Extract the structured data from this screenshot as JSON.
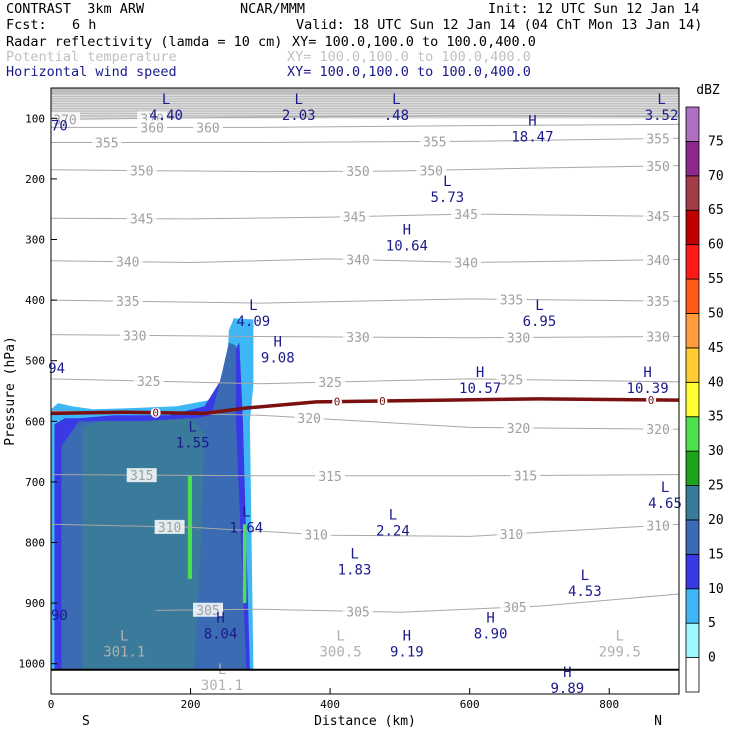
{
  "header": {
    "model": "CONTRAST  3km ARW",
    "org": "NCAR/MMM",
    "init": "Init: 12 UTC Sun 12 Jan 14",
    "fcst_label": "Fcst:",
    "fcst_value": "6 h",
    "valid": "Valid: 18 UTC Sun 12 Jan 14 (04 ChT Mon 13 Jan 14)",
    "field1": "Radar reflectivity (lamda = 10 cm)",
    "field1_xy": "XY= 100.0,100.0 to 100.0,400.0",
    "field2": "Potential temperature",
    "field2_xy": "XY= 100.0,100.0 to 100.0,400.0",
    "field3": "Horizontal wind speed",
    "field3_xy": "XY= 100.0,100.0 to 100.0,400.0"
  },
  "chart_data": {
    "type": "cross-section",
    "xlabel": "Distance (km)",
    "ylabel": "Pressure (hPa)",
    "xlim": [
      0,
      900
    ],
    "ylim": [
      1050,
      50
    ],
    "x_ticks": [
      0,
      200,
      400,
      600,
      800
    ],
    "y_ticks": [
      100,
      200,
      300,
      400,
      500,
      600,
      700,
      800,
      900,
      1000
    ],
    "end_labels": [
      "S",
      "N"
    ],
    "colorbar": {
      "unit": "dBZ",
      "levels": [
        0,
        5,
        10,
        15,
        20,
        25,
        30,
        35,
        40,
        45,
        50,
        55,
        60,
        65,
        70,
        75
      ],
      "colors": [
        "#ffffff",
        "#9ef7ff",
        "#3fb6f5",
        "#3939e6",
        "#3b6cb3",
        "#3a7a9a",
        "#1fa31f",
        "#4fe04f",
        "#ffff33",
        "#ffcc33",
        "#ff9d3f",
        "#ff5a1a",
        "#ff1a1a",
        "#c00000",
        "#a33d4a",
        "#8c2a8c",
        "#b070c0"
      ]
    },
    "theta_contours": [
      {
        "label": "370",
        "points": [
          [
            0,
            102
          ],
          [
            300,
            98
          ],
          [
            600,
            96
          ],
          [
            900,
            97
          ]
        ],
        "label_x": [
          20,
          145
        ]
      },
      {
        "label": "360",
        "points": [
          [
            0,
            115
          ],
          [
            300,
            115
          ],
          [
            600,
            112
          ],
          [
            900,
            110
          ]
        ],
        "label_x": [
          145,
          225
        ]
      },
      {
        "label": "355",
        "points": [
          [
            0,
            140
          ],
          [
            300,
            140
          ],
          [
            600,
            138
          ],
          [
            900,
            133
          ]
        ],
        "label_x": [
          80,
          550,
          870
        ]
      },
      {
        "label": "350",
        "points": [
          [
            0,
            185
          ],
          [
            300,
            188
          ],
          [
            500,
            187
          ],
          [
            700,
            182
          ],
          [
            900,
            178
          ]
        ],
        "label_x": [
          130,
          440,
          545,
          870
        ]
      },
      {
        "label": "345",
        "points": [
          [
            0,
            265
          ],
          [
            200,
            266
          ],
          [
            400,
            263
          ],
          [
            600,
            258
          ],
          [
            900,
            262
          ]
        ],
        "label_x": [
          130,
          435,
          595,
          870
        ]
      },
      {
        "label": "340",
        "points": [
          [
            0,
            335
          ],
          [
            200,
            338
          ],
          [
            400,
            332
          ],
          [
            600,
            338
          ],
          [
            900,
            333
          ]
        ],
        "label_x": [
          110,
          440,
          595,
          870
        ]
      },
      {
        "label": "335",
        "points": [
          [
            0,
            400
          ],
          [
            300,
            405
          ],
          [
            600,
            398
          ],
          [
            900,
            402
          ]
        ],
        "label_x": [
          110,
          660,
          870
        ]
      },
      {
        "label": "330",
        "points": [
          [
            0,
            457
          ],
          [
            300,
            460
          ],
          [
            600,
            462
          ],
          [
            900,
            460
          ]
        ],
        "label_x": [
          120,
          440,
          670,
          870
        ]
      },
      {
        "label": "325",
        "points": [
          [
            0,
            530
          ],
          [
            300,
            538
          ],
          [
            600,
            530
          ],
          [
            900,
            535
          ]
        ],
        "label_x": [
          140,
          400,
          660
        ]
      },
      {
        "label": "320",
        "points": [
          [
            0,
            583
          ],
          [
            300,
            590
          ],
          [
            600,
            610
          ],
          [
            900,
            613
          ]
        ],
        "label_x": [
          370,
          670,
          870
        ]
      },
      {
        "label": "315",
        "points": [
          [
            0,
            688
          ],
          [
            300,
            690
          ],
          [
            600,
            690
          ],
          [
            900,
            688
          ]
        ],
        "label_x": [
          130,
          400,
          680
        ]
      },
      {
        "label": "310",
        "points": [
          [
            0,
            770
          ],
          [
            200,
            775
          ],
          [
            400,
            788
          ],
          [
            600,
            790
          ],
          [
            900,
            770
          ]
        ],
        "label_x": [
          170,
          380,
          660,
          870
        ]
      },
      {
        "label": "305",
        "points": [
          [
            150,
            912
          ],
          [
            300,
            910
          ],
          [
            500,
            915
          ],
          [
            700,
            905
          ],
          [
            900,
            885
          ]
        ],
        "label_x": [
          225,
          440,
          665
        ]
      }
    ],
    "freezing_level": {
      "label": "0",
      "points": [
        [
          0,
          587
        ],
        [
          100,
          585
        ],
        [
          220,
          587
        ],
        [
          280,
          578
        ],
        [
          380,
          568
        ],
        [
          500,
          566
        ],
        [
          700,
          563
        ],
        [
          900,
          565
        ]
      ],
      "label_x": [
        150,
        410,
        475,
        860
      ]
    },
    "wind_extrema": [
      {
        "kind": "L",
        "value": "4.40",
        "x": 165,
        "p": 80
      },
      {
        "kind": "L",
        "value": "2.03",
        "x": 355,
        "p": 80
      },
      {
        "kind": "L",
        "value": ".48",
        "x": 495,
        "p": 80
      },
      {
        "kind": "L",
        "value": "3.52",
        "x": 875,
        "p": 80
      },
      {
        "kind": "",
        "value": "70",
        "x": 12,
        "p": 97
      },
      {
        "kind": "H",
        "value": "18.47",
        "x": 690,
        "p": 115
      },
      {
        "kind": "L",
        "value": "5.73",
        "x": 568,
        "p": 215
      },
      {
        "kind": "H",
        "value": "10.64",
        "x": 510,
        "p": 295
      },
      {
        "kind": "L",
        "value": "4.09",
        "x": 290,
        "p": 420
      },
      {
        "kind": "L",
        "value": "6.95",
        "x": 700,
        "p": 420
      },
      {
        "kind": "H",
        "value": "9.08",
        "x": 325,
        "p": 480
      },
      {
        "kind": "",
        "value": "94",
        "x": 8,
        "p": 497
      },
      {
        "kind": "H",
        "value": "10.57",
        "x": 615,
        "p": 530
      },
      {
        "kind": "H",
        "value": "10.39",
        "x": 855,
        "p": 530
      },
      {
        "kind": "L",
        "value": "1.55",
        "x": 203,
        "p": 620
      },
      {
        "kind": "L",
        "value": "1.64",
        "x": 280,
        "p": 760
      },
      {
        "kind": "L",
        "value": "2.24",
        "x": 490,
        "p": 765
      },
      {
        "kind": "L",
        "value": "4.65",
        "x": 880,
        "p": 720
      },
      {
        "kind": "L",
        "value": "1.83",
        "x": 435,
        "p": 830
      },
      {
        "kind": "L",
        "value": "4.53",
        "x": 765,
        "p": 865
      },
      {
        "kind": "",
        "value": "90",
        "x": 12,
        "p": 905
      },
      {
        "kind": "L",
        "value": "301.1",
        "x": 105,
        "p": 965
      },
      {
        "kind": "H",
        "value": "8.04",
        "x": 243,
        "p": 935
      },
      {
        "kind": "L",
        "value": "300.5",
        "x": 415,
        "p": 965
      },
      {
        "kind": "H",
        "value": "9.19",
        "x": 510,
        "p": 965
      },
      {
        "kind": "H",
        "value": "8.90",
        "x": 630,
        "p": 935
      },
      {
        "kind": "L",
        "value": "299.5",
        "x": 815,
        "p": 965
      },
      {
        "kind": "H",
        "value": "9.89",
        "x": 740,
        "p": 1025
      },
      {
        "kind": "L",
        "value": "301.1",
        "x": 245,
        "p": 1020
      }
    ],
    "reflectivity_regions": [
      {
        "dbz": 5,
        "points": [
          [
            0,
            580
          ],
          [
            10,
            570
          ],
          [
            30,
            575
          ],
          [
            60,
            580
          ],
          [
            120,
            578
          ],
          [
            180,
            575
          ],
          [
            250,
            560
          ],
          [
            255,
            450
          ],
          [
            262,
            430
          ],
          [
            290,
            432
          ],
          [
            290,
            540
          ],
          [
            285,
            600
          ],
          [
            290,
            1010
          ],
          [
            0,
            1010
          ]
        ]
      },
      {
        "dbz": 10,
        "points": [
          [
            5,
            605
          ],
          [
            20,
            595
          ],
          [
            40,
            595
          ],
          [
            90,
            590
          ],
          [
            170,
            590
          ],
          [
            220,
            575
          ],
          [
            250,
            520
          ],
          [
            265,
            480
          ],
          [
            270,
            470
          ],
          [
            275,
            600
          ],
          [
            285,
            1010
          ],
          [
            5,
            1010
          ]
        ]
      },
      {
        "dbz": 15,
        "points": [
          [
            15,
            640
          ],
          [
            25,
            625
          ],
          [
            40,
            600
          ],
          [
            100,
            600
          ],
          [
            180,
            600
          ],
          [
            230,
            590
          ],
          [
            245,
            520
          ],
          [
            255,
            470
          ],
          [
            265,
            475
          ],
          [
            265,
            600
          ],
          [
            280,
            1010
          ],
          [
            15,
            1010
          ]
        ]
      },
      {
        "dbz": 20,
        "points": [
          [
            45,
            610
          ],
          [
            70,
            600
          ],
          [
            130,
            600
          ],
          [
            200,
            595
          ],
          [
            220,
            620
          ],
          [
            215,
            800
          ],
          [
            205,
            1010
          ],
          [
            45,
            1010
          ]
        ]
      },
      {
        "dbz": 30,
        "points": [
          [
            196,
            690
          ],
          [
            202,
            690
          ],
          [
            202,
            860
          ],
          [
            196,
            860
          ]
        ]
      },
      {
        "dbz": 30,
        "points": [
          [
            275,
            770
          ],
          [
            280,
            770
          ],
          [
            280,
            900
          ],
          [
            275,
            900
          ]
        ]
      }
    ],
    "surface_p": 1010
  }
}
